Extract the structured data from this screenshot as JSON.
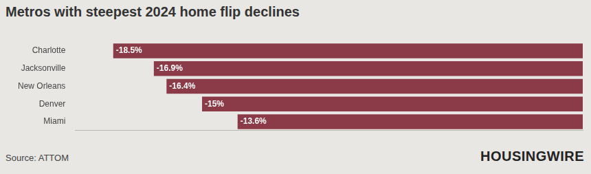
{
  "chart_data": {
    "type": "bar",
    "orientation": "horizontal",
    "title": "Metros with steepest 2024 home flip declines",
    "categories": [
      "Charlotte",
      "Jacksonville",
      "New Orleans",
      "Denver",
      "Miami"
    ],
    "values": [
      -18.5,
      -16.9,
      -16.4,
      -15,
      -13.6
    ],
    "value_labels": [
      "-18.5%",
      "-16.9%",
      "-16.4%",
      "-15%",
      "-13.6%"
    ],
    "color": "#8b3a48",
    "xlim": [
      -20,
      0
    ],
    "grid": false,
    "data_labels": true,
    "tick_labels": "y",
    "source": "Source: ATTOM",
    "credit": "HOUSINGWIRE"
  }
}
